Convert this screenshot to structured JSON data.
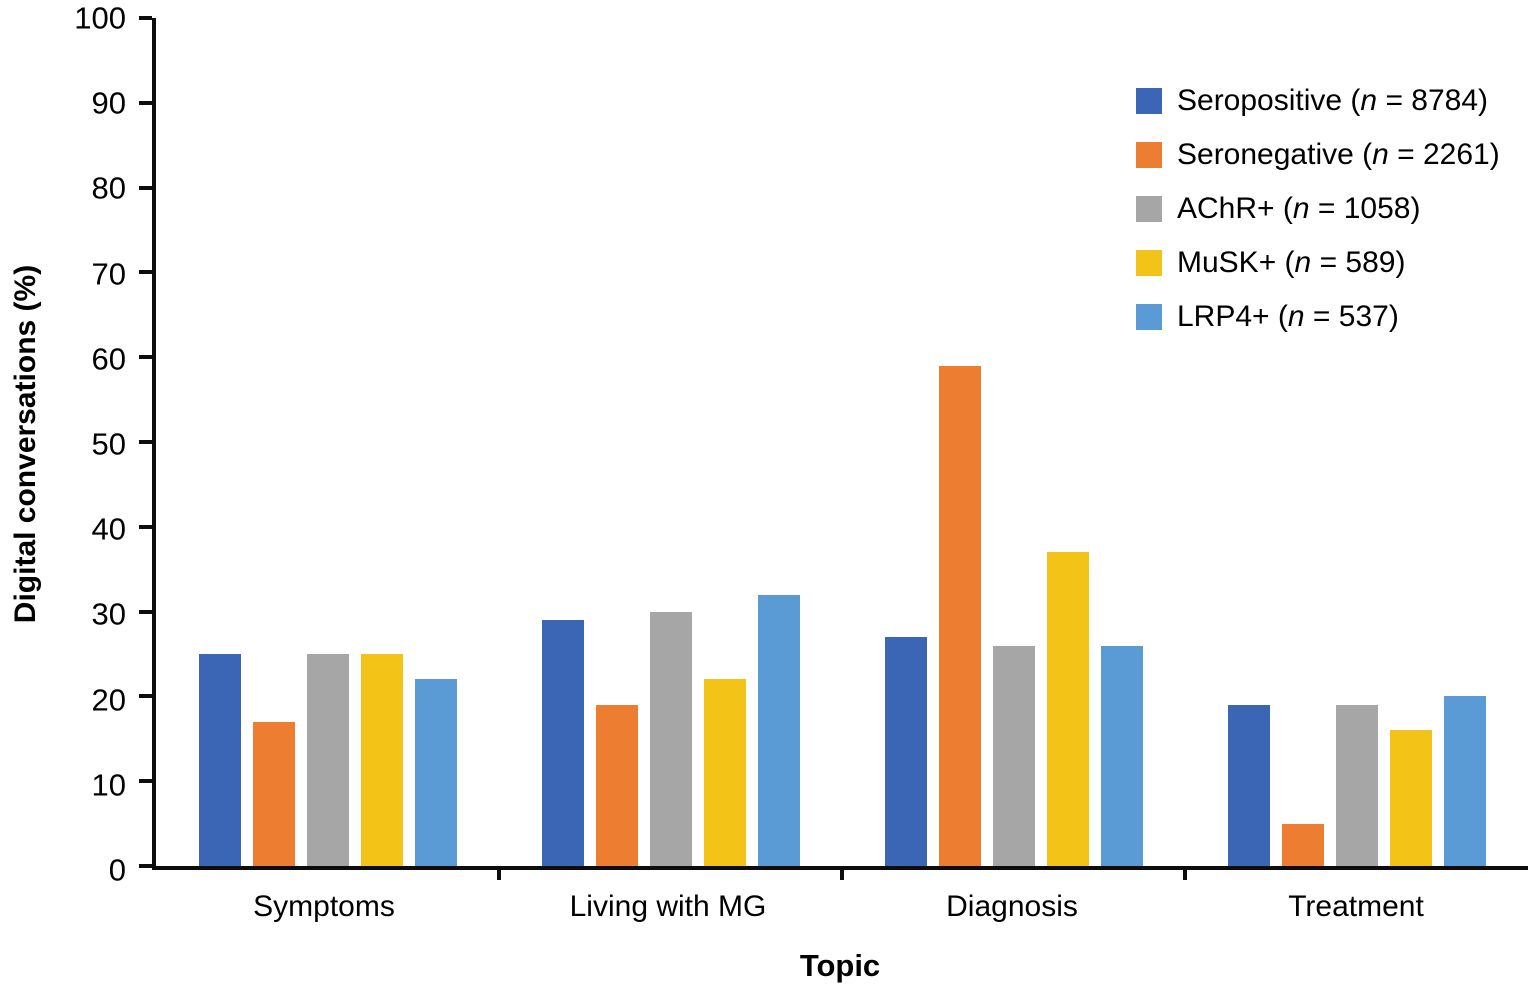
{
  "chart_data": {
    "type": "bar",
    "title": "",
    "xlabel": "Topic",
    "ylabel": "Digital conversations (%)",
    "ylim": [
      0,
      100
    ],
    "yticks": [
      0,
      10,
      20,
      30,
      40,
      50,
      60,
      70,
      80,
      90,
      100
    ],
    "grid": false,
    "legend_position": "top-right",
    "categories": [
      "Symptoms",
      "Living with MG",
      "Diagnosis",
      "Treatment"
    ],
    "series": [
      {
        "name": "Seropositive",
        "n": "8784",
        "color": "#3b66b5",
        "values": [
          25,
          29,
          27,
          19
        ]
      },
      {
        "name": "Seronegative",
        "n": "2261",
        "color": "#ed7d31",
        "values": [
          17,
          19,
          59,
          5
        ]
      },
      {
        "name": "AChR+",
        "n": "1058",
        "color": "#a6a6a6",
        "values": [
          25,
          30,
          26,
          19
        ]
      },
      {
        "name": "MuSK+",
        "n": "589",
        "color": "#f3c317",
        "values": [
          25,
          22,
          37,
          16
        ]
      },
      {
        "name": "LRP4+",
        "n": "537",
        "color": "#5b9bd5",
        "values": [
          22,
          32,
          26,
          20
        ]
      }
    ]
  }
}
